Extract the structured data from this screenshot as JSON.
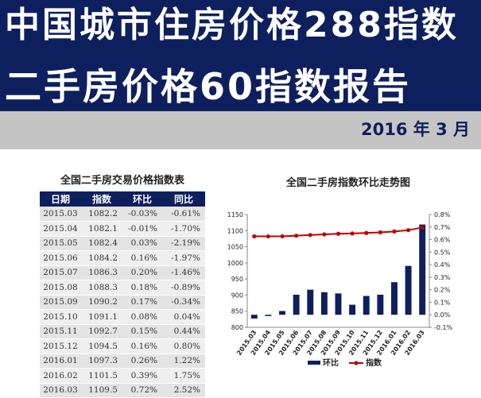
{
  "header": {
    "title_line1": "中国城市住房价格288指数",
    "title_line2": "二手房价格60指数报告",
    "report_date": "2016 年 3 月"
  },
  "table": {
    "title": "全国二手房交易价格指数表",
    "columns": [
      "日期",
      "指数",
      "环比",
      "同比"
    ],
    "rows": [
      [
        "2015.03",
        "1082.2",
        "-0.03%",
        "-0.61%"
      ],
      [
        "2015.04",
        "1082.1",
        "-0.01%",
        "-1.70%"
      ],
      [
        "2015.05",
        "1082.4",
        "0.03%",
        "-2.19%"
      ],
      [
        "2015.06",
        "1084.2",
        "0.16%",
        "-1.97%"
      ],
      [
        "2015.07",
        "1086.3",
        "0.20%",
        "-1.46%"
      ],
      [
        "2015.08",
        "1088.3",
        "0.18%",
        "-0.89%"
      ],
      [
        "2015.09",
        "1090.2",
        "0.17%",
        "-0.34%"
      ],
      [
        "2015.10",
        "1091.1",
        "0.08%",
        "0.04%"
      ],
      [
        "2015.11",
        "1092.7",
        "0.15%",
        "0.44%"
      ],
      [
        "2015.12",
        "1094.5",
        "0.16%",
        "0.80%"
      ],
      [
        "2016.01",
        "1097.3",
        "0.26%",
        "1.22%"
      ],
      [
        "2016.02",
        "1101.5",
        "0.39%",
        "1.75%"
      ],
      [
        "2016.03",
        "1109.5",
        "0.72%",
        "2.52%"
      ]
    ]
  },
  "chart_data": {
    "type": "bar",
    "title": "全国二手房指数环比走势图",
    "categories": [
      "2015.03",
      "2015.04",
      "2015.05",
      "2015.06",
      "2015.07",
      "2015.08",
      "2015.09",
      "2015.10",
      "2015.11",
      "2015.12",
      "2016.01",
      "2016.02",
      "2016.03"
    ],
    "series": [
      {
        "name": "环比",
        "type": "bar",
        "axis": "right",
        "color": "#0e1f5e",
        "values": [
          -0.03,
          -0.01,
          0.03,
          0.16,
          0.2,
          0.18,
          0.17,
          0.08,
          0.15,
          0.16,
          0.26,
          0.39,
          0.72
        ]
      },
      {
        "name": "指数",
        "type": "line",
        "axis": "left",
        "color": "#c00000",
        "values": [
          1082.2,
          1082.1,
          1082.4,
          1084.2,
          1086.3,
          1088.3,
          1090.2,
          1091.1,
          1092.7,
          1094.5,
          1097.3,
          1101.5,
          1109.5
        ]
      }
    ],
    "left_axis": {
      "min": 800,
      "max": 1150,
      "ticks": [
        "800",
        "850",
        "900",
        "950",
        "1000",
        "1050",
        "1100",
        "1150"
      ]
    },
    "right_axis": {
      "min": -0.1,
      "max": 0.8,
      "ticks": [
        "-0.1%",
        "0.0%",
        "0.1%",
        "0.2%",
        "0.3%",
        "0.4%",
        "0.5%",
        "0.6%",
        "0.7%",
        "0.8%"
      ]
    },
    "legend_position": "bottom"
  }
}
